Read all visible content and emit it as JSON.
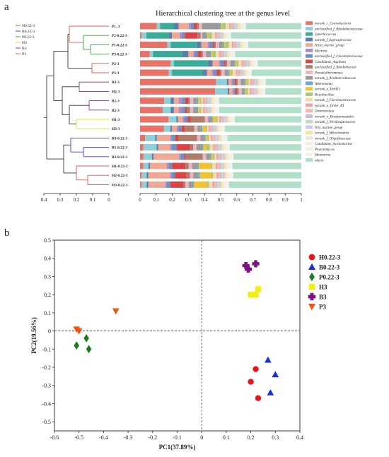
{
  "panel_a": {
    "panel_label": "a",
    "title": "Hierarchical clustering tree at the genus level",
    "cluster_legend": [
      {
        "name": "H0.22-3",
        "color": "#e0443a"
      },
      {
        "name": "B0.22-3",
        "color": "#3b3bd1"
      },
      {
        "name": "P0.22-3",
        "color": "#3aa23a"
      },
      {
        "name": "H3",
        "color": "#f2d12a"
      },
      {
        "name": "B3",
        "color": "#8e2fa0"
      },
      {
        "name": "P3",
        "color": "#e8702a"
      }
    ],
    "tree_axis_ticks": [
      "0.4",
      "0.3",
      "0.2",
      "0.1",
      "0"
    ],
    "bar_axis_ticks": [
      "0",
      "0.1",
      "0.2",
      "0.3",
      "0.4",
      "0.5",
      "0.6",
      "0.7",
      "0.8",
      "0.9",
      "1"
    ]
  },
  "panel_b": {
    "panel_label": "b"
  },
  "chart_data": [
    {
      "type": "bar",
      "orientation": "horizontal-stacked",
      "title": "Hierarchical clustering tree at the genus level",
      "xlim": [
        0,
        1
      ],
      "categories": [
        "P1_3",
        "P2-0.22-3",
        "P1-0.22-3",
        "P3-0.22-3",
        "P2-3",
        "P3-3",
        "B3-3",
        "H2-3",
        "B1-3",
        "B2-3",
        "H1-3",
        "H3-3",
        "B3-0.22-3",
        "B1-0.22-3",
        "B2-0.22-3",
        "H1-0.22-3",
        "H2-0.22-3",
        "H3-0.22-3"
      ],
      "legend_position": "right",
      "series": [
        {
          "name": "norank_c_Cyanobacteria",
          "color": "#e57368",
          "values": [
            0.1,
            0.01,
            0.17,
            0.06,
            0.19,
            0.18,
            0.49,
            0.48,
            0.15,
            0.14,
            0.18,
            0.15,
            0.03,
            0.02,
            0.02,
            0.02,
            0.01,
            0.01
          ]
        },
        {
          "name": "unclassified_f_Rhodobacteraceae",
          "color": "#8fcfd8",
          "values": [
            0.02,
            0.03,
            0.02,
            0.02,
            0.02,
            0.02,
            0.07,
            0.08,
            0.04,
            0.05,
            0.05,
            0.04,
            0.06,
            0.08,
            0.05,
            0.03,
            0.03,
            0.03
          ]
        },
        {
          "name": "Synechococcus",
          "color": "#3aaa99",
          "values": [
            0.08,
            0.14,
            0.16,
            0.18,
            0.21,
            0.19,
            0.0,
            0.0,
            0.0,
            0.0,
            0.0,
            0.0,
            0.0,
            0.0,
            0.0,
            0.0,
            0.0,
            0.0
          ]
        },
        {
          "name": "norank_f_Saprospiraceae",
          "color": "#5b7fa8",
          "values": [
            0.03,
            0.02,
            0.03,
            0.04,
            0.03,
            0.03,
            0.01,
            0.01,
            0.02,
            0.02,
            0.01,
            0.01,
            0.01,
            0.01,
            0.01,
            0.01,
            0.01,
            0.01
          ]
        },
        {
          "name": "NS3a_marine_group",
          "color": "#f0a894",
          "values": [
            0.06,
            0.05,
            0.04,
            0.03,
            0.04,
            0.03,
            0.02,
            0.02,
            0.03,
            0.03,
            0.03,
            0.03,
            0.08,
            0.07,
            0.15,
            0.1,
            0.13,
            0.1
          ]
        },
        {
          "name": "Marivita",
          "color": "#a98cc7",
          "values": [
            0.01,
            0.01,
            0.01,
            0.01,
            0.01,
            0.01,
            0.01,
            0.01,
            0.02,
            0.02,
            0.01,
            0.01,
            0.01,
            0.01,
            0.01,
            0.01,
            0.01,
            0.01
          ]
        },
        {
          "name": "unclassified_f_Flavobacteriaceae",
          "color": "#6f8fc0",
          "values": [
            0.02,
            0.02,
            0.02,
            0.02,
            0.02,
            0.02,
            0.01,
            0.01,
            0.02,
            0.02,
            0.02,
            0.02,
            0.02,
            0.03,
            0.02,
            0.02,
            0.02,
            0.02
          ]
        },
        {
          "name": "Candidatus_Aquiluna",
          "color": "#d94545",
          "values": [
            0.02,
            0.08,
            0.01,
            0.02,
            0.01,
            0.02,
            0.01,
            0.01,
            0.02,
            0.01,
            0.02,
            0.02,
            0.02,
            0.08,
            0.01,
            0.08,
            0.07,
            0.08
          ]
        },
        {
          "name": "unclassified_f_Rhodobiaceae",
          "color": "#b07d6a",
          "values": [
            0.01,
            0.02,
            0.01,
            0.01,
            0.01,
            0.01,
            0.01,
            0.01,
            0.01,
            0.02,
            0.09,
            0.06,
            0.11,
            0.02,
            0.1,
            0.02,
            0.02,
            0.01
          ]
        },
        {
          "name": "Pseudoalteromonas",
          "color": "#e6b6c2",
          "values": [
            0.02,
            0.01,
            0.02,
            0.02,
            0.02,
            0.02,
            0.02,
            0.02,
            0.02,
            0.02,
            0.02,
            0.02,
            0.02,
            0.02,
            0.02,
            0.02,
            0.02,
            0.02
          ]
        },
        {
          "name": "norank_f_Acidimicrobiaceae",
          "color": "#999999",
          "values": [
            0.1,
            0.02,
            0.02,
            0.02,
            0.02,
            0.02,
            0.02,
            0.01,
            0.02,
            0.02,
            0.02,
            0.02,
            0.02,
            0.03,
            0.02,
            0.03,
            0.03,
            0.02
          ]
        },
        {
          "name": "Alteromonas",
          "color": "#6ca8cc",
          "values": [
            0.01,
            0.01,
            0.01,
            0.01,
            0.01,
            0.01,
            0.01,
            0.01,
            0.01,
            0.01,
            0.01,
            0.01,
            0.01,
            0.01,
            0.01,
            0.01,
            0.01,
            0.01
          ]
        },
        {
          "name": "norank_o_PeM15",
          "color": "#f1c232",
          "values": [
            0.01,
            0.01,
            0.01,
            0.01,
            0.01,
            0.01,
            0.01,
            0.01,
            0.01,
            0.01,
            0.02,
            0.02,
            0.01,
            0.02,
            0.01,
            0.07,
            0.07,
            0.08
          ]
        },
        {
          "name": "Roseibacillus",
          "color": "#a8c97a",
          "values": [
            0.02,
            0.02,
            0.02,
            0.02,
            0.01,
            0.01,
            0.01,
            0.01,
            0.01,
            0.01,
            0.01,
            0.01,
            0.01,
            0.02,
            0.01,
            0.01,
            0.01,
            0.01
          ]
        },
        {
          "name": "norank_f_Flavobacteriaceae",
          "color": "#f6d9b0",
          "values": [
            0.02,
            0.02,
            0.02,
            0.02,
            0.02,
            0.02,
            0.01,
            0.01,
            0.01,
            0.01,
            0.01,
            0.01,
            0.01,
            0.02,
            0.01,
            0.02,
            0.02,
            0.02
          ]
        },
        {
          "name": "norank_o_Order_III",
          "color": "#e6a8a8",
          "values": [
            0.01,
            0.01,
            0.01,
            0.01,
            0.01,
            0.01,
            0.01,
            0.01,
            0.01,
            0.01,
            0.01,
            0.01,
            0.01,
            0.01,
            0.01,
            0.01,
            0.01,
            0.01
          ]
        },
        {
          "name": "Owenweeksia",
          "color": "#f3b8a8",
          "values": [
            0.01,
            0.01,
            0.01,
            0.01,
            0.01,
            0.01,
            0.01,
            0.01,
            0.01,
            0.01,
            0.01,
            0.01,
            0.01,
            0.01,
            0.01,
            0.01,
            0.01,
            0.01
          ]
        },
        {
          "name": "norank_o_Bradymonadales",
          "color": "#d0b8d8",
          "values": [
            0.01,
            0.01,
            0.01,
            0.01,
            0.01,
            0.01,
            0.01,
            0.01,
            0.01,
            0.01,
            0.01,
            0.01,
            0.01,
            0.01,
            0.01,
            0.01,
            0.01,
            0.01
          ]
        },
        {
          "name": "norank_f_Nitriliruptoraceae",
          "color": "#c6dcc0",
          "values": [
            0.01,
            0.01,
            0.01,
            0.01,
            0.01,
            0.01,
            0.01,
            0.01,
            0.01,
            0.01,
            0.01,
            0.01,
            0.01,
            0.01,
            0.01,
            0.01,
            0.01,
            0.01
          ]
        },
        {
          "name": "NS5_marine_group",
          "color": "#cfc6e8",
          "values": [
            0.01,
            0.01,
            0.01,
            0.01,
            0.01,
            0.01,
            0.01,
            0.01,
            0.01,
            0.01,
            0.01,
            0.01,
            0.01,
            0.01,
            0.01,
            0.01,
            0.01,
            0.01
          ]
        },
        {
          "name": "norank_f_Mitochondria",
          "color": "#f6e2a0",
          "values": [
            0.01,
            0.01,
            0.01,
            0.01,
            0.01,
            0.01,
            0.01,
            0.01,
            0.01,
            0.01,
            0.01,
            0.01,
            0.01,
            0.01,
            0.01,
            0.01,
            0.01,
            0.01
          ]
        },
        {
          "name": "norank_f_Oligoflexaceae",
          "color": "#f2e6d6",
          "values": [
            0.01,
            0.01,
            0.01,
            0.01,
            0.01,
            0.01,
            0.01,
            0.01,
            0.01,
            0.01,
            0.01,
            0.01,
            0.01,
            0.01,
            0.01,
            0.01,
            0.01,
            0.01
          ]
        },
        {
          "name": "Candidatus_Actinomarina",
          "color": "#f5eedc",
          "values": [
            0.01,
            0.01,
            0.01,
            0.01,
            0.01,
            0.01,
            0.01,
            0.01,
            0.01,
            0.01,
            0.01,
            0.01,
            0.01,
            0.01,
            0.01,
            0.01,
            0.01,
            0.01
          ]
        },
        {
          "name": "Planctomyces",
          "color": "#eaf2e0",
          "values": [
            0.01,
            0.01,
            0.01,
            0.01,
            0.01,
            0.01,
            0.01,
            0.01,
            0.01,
            0.01,
            0.01,
            0.01,
            0.01,
            0.01,
            0.01,
            0.01,
            0.01,
            0.01
          ]
        },
        {
          "name": "Idiomarina",
          "color": "#f2f2f2",
          "values": [
            0.01,
            0.01,
            0.01,
            0.01,
            0.01,
            0.01,
            0.01,
            0.01,
            0.01,
            0.01,
            0.01,
            0.01,
            0.01,
            0.01,
            0.01,
            0.01,
            0.01,
            0.01
          ]
        },
        {
          "name": "others",
          "color": "#b2dfc8",
          "values": [
            0.33,
            0.44,
            0.33,
            0.41,
            0.27,
            0.31,
            0.23,
            0.23,
            0.51,
            0.51,
            0.42,
            0.48,
            0.44,
            0.43,
            0.4,
            0.41,
            0.41,
            0.43
          ]
        }
      ]
    },
    {
      "type": "scatter",
      "xlabel": "PC1(37.89%)",
      "ylabel": "PC2(19.56%)",
      "xlim": [
        -0.6,
        0.4
      ],
      "ylim": [
        -0.55,
        0.5
      ],
      "xticks": [
        -0.6,
        -0.5,
        -0.4,
        -0.3,
        -0.2,
        -0.1,
        0,
        0.1,
        0.2,
        0.3,
        0.4
      ],
      "yticks": [
        -0.5,
        -0.4,
        -0.3,
        -0.2,
        -0.1,
        0,
        0.1,
        0.2,
        0.3,
        0.4,
        0.5
      ],
      "reference_lines": {
        "x": 0,
        "y": 0,
        "style": "dashed"
      },
      "legend_position": "right",
      "series": [
        {
          "name": "H0.22-3",
          "marker": "circle",
          "color": "#e8131b",
          "points": [
            [
              0.22,
              -0.21
            ],
            [
              0.2,
              -0.28
            ],
            [
              0.23,
              -0.37
            ]
          ]
        },
        {
          "name": "B0.22-3",
          "marker": "triangle",
          "color": "#1a2fd6",
          "points": [
            [
              0.27,
              -0.16
            ],
            [
              0.3,
              -0.24
            ],
            [
              0.28,
              -0.34
            ]
          ]
        },
        {
          "name": "P0.22-3",
          "marker": "diamond",
          "color": "#1f7a1f",
          "points": [
            [
              -0.51,
              -0.08
            ],
            [
              -0.47,
              -0.04
            ],
            [
              -0.46,
              -0.1
            ]
          ]
        },
        {
          "name": "H3",
          "marker": "square",
          "color": "#f2ef12",
          "points": [
            [
              0.2,
              0.2
            ],
            [
              0.22,
              0.2
            ],
            [
              0.23,
              0.23
            ]
          ]
        },
        {
          "name": "B3",
          "marker": "plus",
          "color": "#7d1282",
          "points": [
            [
              0.18,
              0.36
            ],
            [
              0.19,
              0.34
            ],
            [
              0.22,
              0.37
            ]
          ]
        },
        {
          "name": "P3",
          "marker": "inverted-triangle",
          "color": "#f05414",
          "points": [
            [
              -0.35,
              0.11
            ],
            [
              -0.51,
              0.01
            ],
            [
              -0.5,
              0.0
            ]
          ]
        }
      ]
    }
  ]
}
